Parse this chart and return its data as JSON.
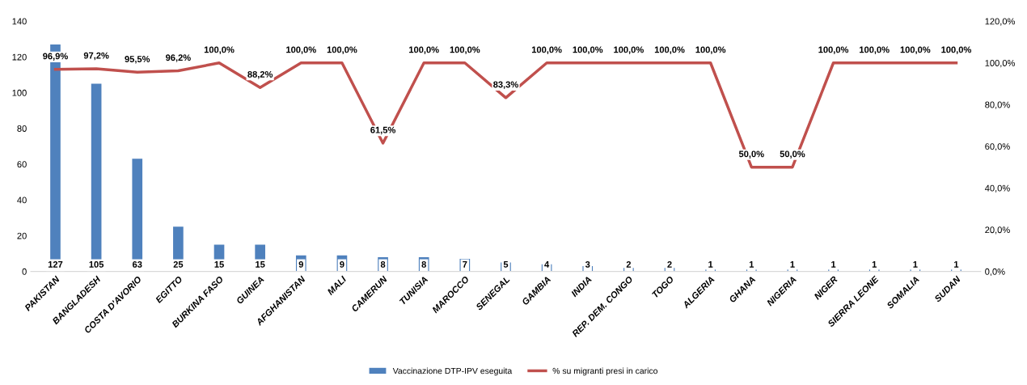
{
  "chart_data": {
    "type": "bar",
    "categories": [
      "PAKISTAN",
      "BANGLADESH",
      "COSTA D'AVORIO",
      "EGITTO",
      "BURKINA FASO",
      "GUINEA",
      "AFGHANISTAN",
      "MALI",
      "CAMERUN",
      "TUNISIA",
      "MAROCCO",
      "SENEGAL",
      "GAMBIA",
      "INDIA",
      "REP. DEM. CONGO",
      "TOGO",
      "ALGERIA",
      "GHANA",
      "NIGERIA",
      "NIGER",
      "SIERRA LEONE",
      "SOMALIA",
      "SUDAN"
    ],
    "series": [
      {
        "name": "Vaccinazione DTP-IPV eseguita",
        "color": "#4f81bd",
        "values": [
          127,
          105,
          63,
          25,
          15,
          15,
          9,
          9,
          8,
          8,
          7,
          5,
          4,
          3,
          2,
          2,
          1,
          1,
          1,
          1,
          1,
          1,
          1
        ],
        "value_labels": [
          "127",
          "105",
          "63",
          "25",
          "15",
          "15",
          "9",
          "9",
          "8",
          "8",
          "7",
          "5",
          "4",
          "3",
          "2",
          "2",
          "1",
          "1",
          "1",
          "1",
          "1",
          "1",
          "1"
        ]
      },
      {
        "name": "% su migranti presi in carico",
        "type": "line",
        "axis": "y2",
        "color": "#c0504d",
        "values": [
          96.9,
          97.2,
          95.5,
          96.2,
          100,
          88.2,
          100,
          100,
          61.5,
          100,
          100,
          83.3,
          100,
          100,
          100,
          100,
          100,
          50,
          50,
          100,
          100,
          100,
          100
        ],
        "value_labels": [
          "96,9%",
          "97,2%",
          "95,5%",
          "96,2%",
          "100,0%",
          "88,2%",
          "100,0%",
          "100,0%",
          "61,5%",
          "100,0%",
          "100,0%",
          "83,3%",
          "100,0%",
          "100,0%",
          "100,0%",
          "100,0%",
          "100,0%",
          "50,0%",
          "50,0%",
          "100,0%",
          "100,0%",
          "100,0%",
          "100,0%"
        ]
      }
    ],
    "ylim": [
      0,
      140
    ],
    "yticks": [
      0,
      20,
      40,
      60,
      80,
      100,
      120,
      140
    ],
    "y2lim": [
      0,
      120
    ],
    "y2ticks": [
      {
        "value": 0,
        "label": "0,0%"
      },
      {
        "value": 20,
        "label": "20,0%"
      },
      {
        "value": 40,
        "label": "40,0%"
      },
      {
        "value": 60,
        "label": "60,0%"
      },
      {
        "value": 80,
        "label": "80,0%"
      },
      {
        "value": 100,
        "label": "100,0%"
      },
      {
        "value": 120,
        "label": "120,0%"
      }
    ],
    "legend": "bottom",
    "grid": false
  }
}
